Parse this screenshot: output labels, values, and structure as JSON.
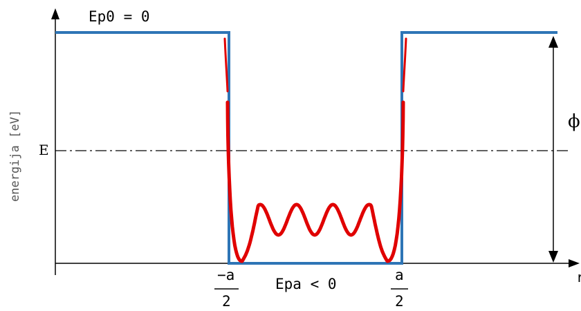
{
  "labels": {
    "ep0": "Ep0 = 0",
    "epa": "Epa < 0",
    "ylabel": "energija [eV]",
    "E": "E",
    "phi": "ϕ",
    "r": "r",
    "left_num": "−a",
    "left_den": "2",
    "right_num": "a",
    "right_den": "2"
  },
  "colors": {
    "well": "#2e75b6",
    "wave": "#e00000",
    "axis": "#000000",
    "dash": "#000000"
  }
}
